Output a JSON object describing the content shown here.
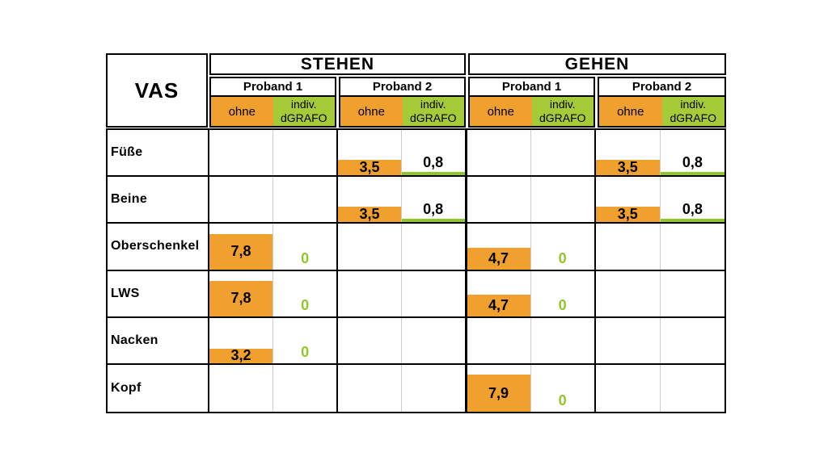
{
  "colors": {
    "orange": "#F0A02E",
    "green_header": "#A5CB39",
    "green_bar": "#8FC826",
    "green_text": "#8FC826",
    "border": "#000000",
    "light_divider": "#cccccc",
    "bg": "#ffffff"
  },
  "header": {
    "corner_label": "VAS",
    "activities": [
      {
        "label": "STEHEN"
      },
      {
        "label": "GEHEN"
      }
    ],
    "proband_labels": [
      "Proband 1",
      "Proband 2",
      "Proband 1",
      "Proband 2"
    ],
    "condition_ohne": "ohne",
    "condition_dgrafo_line1": "indiv.",
    "condition_dgrafo_line2": "dGRAFO"
  },
  "chart_data": {
    "type": "bar",
    "title": "VAS",
    "value_range": [
      0,
      10
    ],
    "column_groups": [
      {
        "activity": "STEHEN",
        "proband": "Proband 1"
      },
      {
        "activity": "STEHEN",
        "proband": "Proband 2"
      },
      {
        "activity": "GEHEN",
        "proband": "Proband 1"
      },
      {
        "activity": "GEHEN",
        "proband": "Proband 2"
      }
    ],
    "conditions": [
      "ohne",
      "indiv. dGRAFO"
    ],
    "rows": [
      {
        "label": "Füße",
        "cells": [
          {
            "ohne": null,
            "dgrafo": null
          },
          {
            "ohne": 3.5,
            "ohne_label": "3,5",
            "dgrafo": 0.8,
            "dgrafo_label": "0,8"
          },
          {
            "ohne": null,
            "dgrafo": null
          },
          {
            "ohne": 3.5,
            "ohne_label": "3,5",
            "dgrafo": 0.8,
            "dgrafo_label": "0,8"
          }
        ]
      },
      {
        "label": "Beine",
        "cells": [
          {
            "ohne": null,
            "dgrafo": null
          },
          {
            "ohne": 3.5,
            "ohne_label": "3,5",
            "dgrafo": 0.8,
            "dgrafo_label": "0,8"
          },
          {
            "ohne": null,
            "dgrafo": null
          },
          {
            "ohne": 3.5,
            "ohne_label": "3,5",
            "dgrafo": 0.8,
            "dgrafo_label": "0,8"
          }
        ]
      },
      {
        "label": "Oberschenkel",
        "cells": [
          {
            "ohne": 7.8,
            "ohne_label": "7,8",
            "dgrafo": 0,
            "dgrafo_label": "0"
          },
          {
            "ohne": null,
            "dgrafo": null
          },
          {
            "ohne": 4.7,
            "ohne_label": "4,7",
            "dgrafo": 0,
            "dgrafo_label": "0"
          },
          {
            "ohne": null,
            "dgrafo": null
          }
        ]
      },
      {
        "label": "LWS",
        "cells": [
          {
            "ohne": 7.8,
            "ohne_label": "7,8",
            "dgrafo": 0,
            "dgrafo_label": "0"
          },
          {
            "ohne": null,
            "dgrafo": null
          },
          {
            "ohne": 4.7,
            "ohne_label": "4,7",
            "dgrafo": 0,
            "dgrafo_label": "0"
          },
          {
            "ohne": null,
            "dgrafo": null
          }
        ]
      },
      {
        "label": "Nacken",
        "cells": [
          {
            "ohne": 3.2,
            "ohne_label": "3,2",
            "dgrafo": 0,
            "dgrafo_label": "0"
          },
          {
            "ohne": null,
            "dgrafo": null
          },
          {
            "ohne": null,
            "dgrafo": null
          },
          {
            "ohne": null,
            "dgrafo": null
          }
        ]
      },
      {
        "label": "Kopf",
        "cells": [
          {
            "ohne": null,
            "dgrafo": null
          },
          {
            "ohne": null,
            "dgrafo": null
          },
          {
            "ohne": 7.9,
            "ohne_label": "7,9",
            "dgrafo": 0,
            "dgrafo_label": "0"
          },
          {
            "ohne": null,
            "dgrafo": null
          }
        ]
      }
    ]
  }
}
